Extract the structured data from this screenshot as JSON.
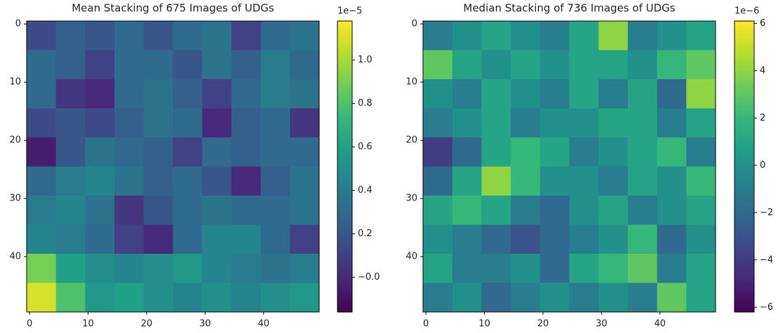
{
  "chart_data": [
    {
      "type": "heatmap",
      "title": "Mean Stacking of 675 Images of UDGs",
      "colormap": "viridis",
      "xbins": [
        -0.5,
        4.5,
        9.5,
        14.5,
        19.5,
        24.5,
        29.5,
        34.5,
        39.5,
        44.5,
        49.5
      ],
      "ybins": [
        -0.5,
        4.5,
        9.5,
        14.5,
        19.5,
        24.5,
        29.5,
        34.5,
        39.5,
        44.5,
        49.5
      ],
      "values": [
        [
          0.15,
          0.25,
          0.2,
          0.3,
          0.2,
          0.3,
          0.35,
          0.1,
          0.3,
          0.35
        ],
        [
          0.3,
          0.25,
          0.1,
          0.3,
          0.3,
          0.2,
          0.35,
          0.25,
          0.4,
          0.3
        ],
        [
          0.3,
          0.05,
          0.0,
          0.3,
          0.35,
          0.25,
          0.1,
          0.3,
          0.4,
          0.35
        ],
        [
          0.15,
          0.2,
          0.15,
          0.25,
          0.35,
          0.3,
          0.0,
          0.25,
          0.3,
          0.05
        ],
        [
          -0.05,
          0.2,
          0.35,
          0.3,
          0.25,
          0.1,
          0.3,
          0.25,
          0.3,
          0.3
        ],
        [
          0.3,
          0.4,
          0.45,
          0.35,
          0.25,
          0.3,
          0.2,
          0.0,
          0.25,
          0.35
        ],
        [
          0.4,
          0.45,
          0.35,
          0.05,
          0.2,
          0.3,
          0.35,
          0.3,
          0.3,
          0.35
        ],
        [
          0.45,
          0.4,
          0.3,
          0.1,
          0.0,
          0.3,
          0.45,
          0.45,
          0.3,
          0.1
        ],
        [
          0.9,
          0.6,
          0.5,
          0.45,
          0.5,
          0.55,
          0.45,
          0.4,
          0.35,
          0.4
        ],
        [
          1.1,
          0.8,
          0.55,
          0.6,
          0.5,
          0.45,
          0.5,
          0.45,
          0.5,
          0.55
        ]
      ],
      "xlim": [
        -0.5,
        49.5
      ],
      "ylim": [
        49.5,
        -0.5
      ],
      "xticks": [
        0,
        10,
        20,
        30,
        40
      ],
      "yticks": [
        0,
        10,
        20,
        30,
        40
      ],
      "colorbar": {
        "lim": [
          -0.16,
          1.18
        ],
        "offset_label": "1e−5",
        "ticks": [
          {
            "value": 0,
            "label": "−0.0"
          },
          0.2,
          0.4,
          0.6,
          0.8,
          {
            "value": 1,
            "label": "1.0"
          }
        ]
      }
    },
    {
      "type": "heatmap",
      "title": "Median Stacking of 736 Images of UDGs",
      "colormap": "viridis",
      "xbins": [
        -0.5,
        4.5,
        9.5,
        14.5,
        19.5,
        24.5,
        29.5,
        34.5,
        39.5,
        44.5,
        49.5
      ],
      "ybins": [
        -0.5,
        4.5,
        9.5,
        14.5,
        19.5,
        24.5,
        29.5,
        34.5,
        39.5,
        44.5,
        49.5
      ],
      "values": [
        [
          -1,
          0,
          1,
          0,
          -1,
          1,
          4,
          -1,
          0,
          1
        ],
        [
          3,
          1,
          0,
          1,
          0,
          1,
          1,
          0,
          2,
          3
        ],
        [
          0,
          -1,
          1,
          0,
          -1,
          1,
          -1,
          1,
          -2,
          4
        ],
        [
          -1,
          0,
          1,
          -1,
          0,
          0,
          1,
          1,
          -1,
          1
        ],
        [
          -4,
          -2,
          1,
          2,
          1,
          -1,
          0,
          1,
          2,
          -1
        ],
        [
          -2,
          1,
          4,
          2,
          0,
          0,
          -1,
          1,
          0,
          2
        ],
        [
          1,
          2,
          1,
          -1,
          -2,
          0,
          1,
          -1,
          0,
          1
        ],
        [
          0,
          -1,
          -2,
          -3,
          -2,
          -1,
          0,
          2,
          -2,
          0
        ],
        [
          1,
          -1,
          -1,
          0,
          -2,
          1,
          2,
          3,
          -1,
          1
        ],
        [
          -1,
          0,
          -2,
          -1,
          0,
          -1,
          0,
          -1,
          3,
          1
        ]
      ],
      "xlim": [
        -0.5,
        49.5
      ],
      "ylim": [
        49.5,
        -0.5
      ],
      "xticks": [
        0,
        10,
        20,
        30,
        40
      ],
      "yticks": [
        0,
        10,
        20,
        30,
        40
      ],
      "colorbar": {
        "lim": [
          -6.2,
          6.1
        ],
        "offset_label": "1e−6",
        "ticks": [
          {
            "value": -6,
            "label": "−6"
          },
          {
            "value": -4,
            "label": "−4"
          },
          {
            "value": -2,
            "label": "−2"
          },
          0,
          2,
          4,
          6
        ]
      }
    }
  ]
}
